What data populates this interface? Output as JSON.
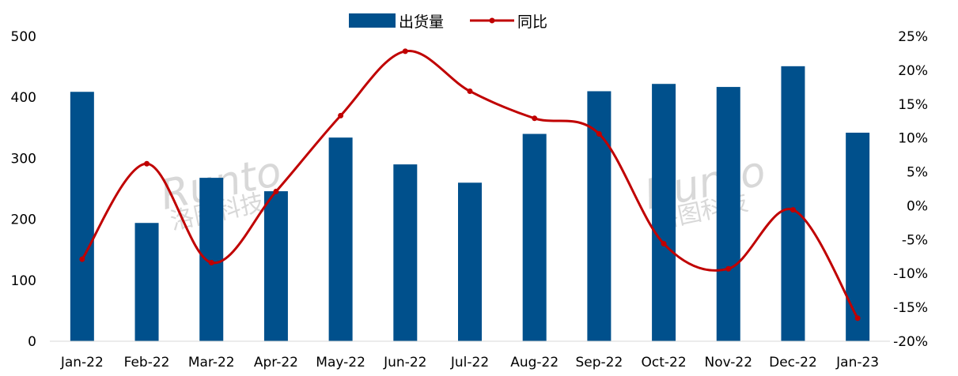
{
  "chart_data": {
    "type": "bar",
    "categories": [
      "Jan-22",
      "Feb-22",
      "Mar-22",
      "Apr-22",
      "May-22",
      "Jun-22",
      "Jul-22",
      "Aug-22",
      "Sep-22",
      "Oct-22",
      "Nov-22",
      "Dec-22",
      "Jan-23"
    ],
    "series": [
      {
        "name": "出货量",
        "type": "bar",
        "axis": "left",
        "color": "#00508C",
        "values": [
          409,
          194,
          268,
          246,
          334,
          290,
          260,
          340,
          410,
          422,
          417,
          451,
          342
        ]
      },
      {
        "name": "同比",
        "type": "line",
        "axis": "right",
        "color": "#C00000",
        "smooth": true,
        "values": [
          -7.9,
          6.2,
          -8.4,
          2.1,
          13.3,
          22.8,
          16.9,
          12.9,
          10.6,
          -5.6,
          -9.3,
          -0.6,
          -16.6
        ]
      }
    ],
    "y_left": {
      "ticks": [
        "0",
        "100",
        "200",
        "300",
        "400",
        "500"
      ],
      "ylim": [
        0,
        500
      ]
    },
    "y_right": {
      "ticks": [
        "-20%",
        "-15%",
        "-10%",
        "-5%",
        "0%",
        "5%",
        "10%",
        "15%",
        "20%",
        "25%"
      ],
      "ylim": [
        -20,
        25
      ]
    },
    "legend": {
      "position": "top-center",
      "items": [
        "出货量",
        "同比"
      ]
    },
    "grid": false,
    "watermark": {
      "text": "Runto",
      "subtext": "洛图科技"
    }
  }
}
